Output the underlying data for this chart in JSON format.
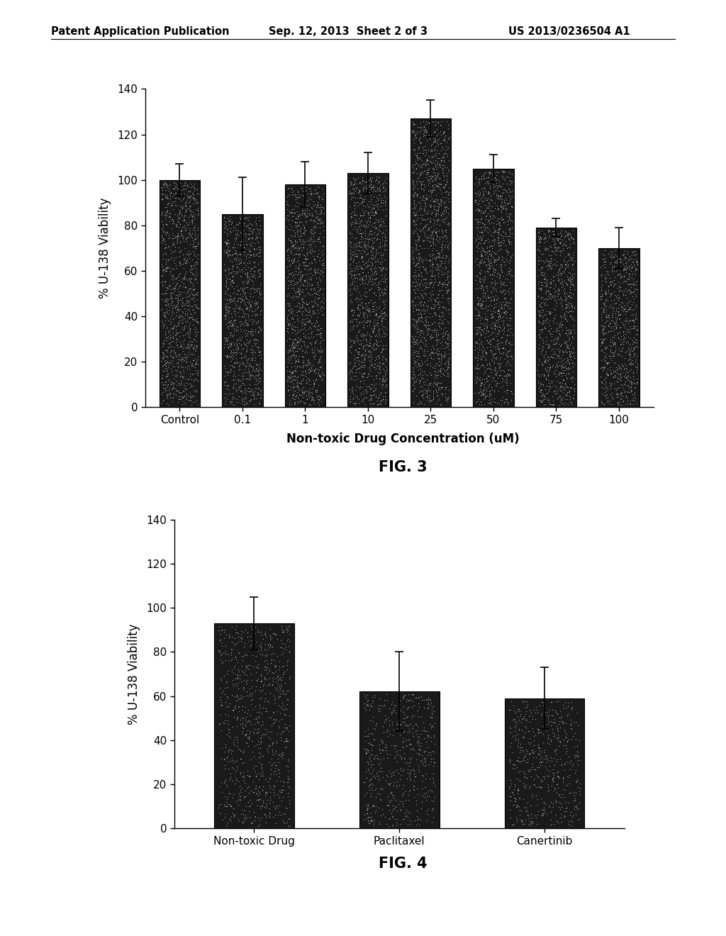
{
  "fig3": {
    "categories": [
      "Control",
      "0.1",
      "1",
      "10",
      "25",
      "50",
      "75",
      "100"
    ],
    "values": [
      100,
      85,
      98,
      103,
      127,
      105,
      79,
      70
    ],
    "errors": [
      7,
      16,
      10,
      9,
      8,
      6,
      4,
      9
    ],
    "xlabel": "Non-toxic Drug Concentration (uM)",
    "ylabel": "% U-138 Viability",
    "ylim": [
      0,
      140
    ],
    "yticks": [
      0,
      20,
      40,
      60,
      80,
      100,
      120,
      140
    ],
    "fig_label": "FIG. 3"
  },
  "fig4": {
    "categories": [
      "Non-toxic Drug",
      "Paclitaxel",
      "Canertinib"
    ],
    "values": [
      93,
      62,
      59
    ],
    "errors": [
      12,
      18,
      14
    ],
    "ylabel": "% U-138 Viability",
    "ylim": [
      0,
      140
    ],
    "yticks": [
      0,
      20,
      40,
      60,
      80,
      100,
      120,
      140
    ],
    "fig_label": "FIG. 4"
  },
  "header_left": "Patent Application Publication",
  "header_center": "Sep. 12, 2013  Sheet 2 of 3",
  "header_right": "US 2013/0236504 A1",
  "background_color": "#ffffff",
  "bar_color": "#1a1a1a",
  "bar_edge_color": "#000000"
}
